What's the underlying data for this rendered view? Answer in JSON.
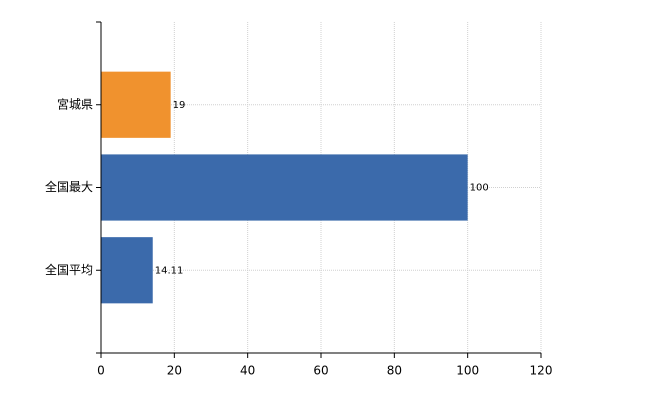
{
  "chart_data": {
    "type": "bar",
    "orientation": "horizontal",
    "categories": [
      "宮城県",
      "全国最大",
      "全国平均"
    ],
    "values": [
      19,
      100,
      14.11
    ],
    "colors": [
      "#f0922e",
      "#3b6aab",
      "#3b6aab"
    ],
    "xlim": [
      0,
      120
    ],
    "xticks": [
      0,
      20,
      40,
      60,
      80,
      100,
      120
    ],
    "grid": true
  }
}
